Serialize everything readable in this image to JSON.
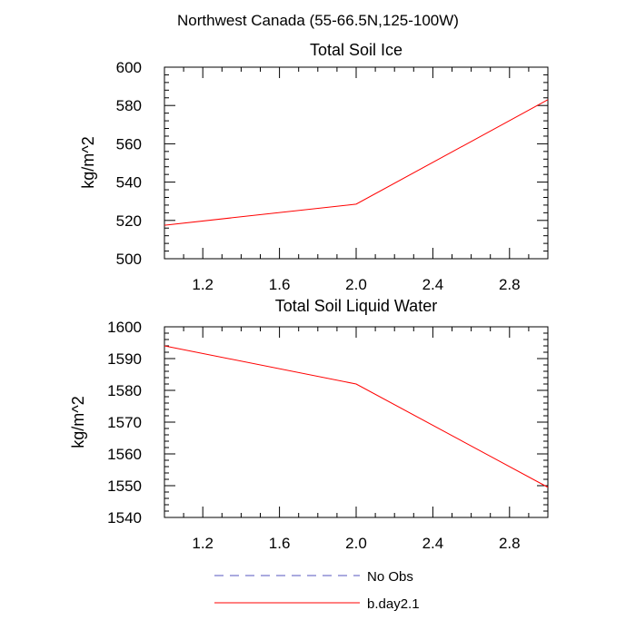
{
  "figure_title": "Northwest Canada (55-66.5N,125-100W)",
  "chart_data": [
    {
      "type": "line",
      "title": "Total Soil Ice",
      "xlabel": "",
      "ylabel": "kg/m^2",
      "xlim": [
        1.0,
        3.0
      ],
      "ylim": [
        500,
        600
      ],
      "xticks": [
        1.2,
        1.6,
        2.0,
        2.4,
        2.8
      ],
      "xtick_labels": [
        "1.2",
        "1.6",
        "2.0",
        "2.4",
        "2.8"
      ],
      "yticks": [
        500,
        520,
        540,
        560,
        580,
        600
      ],
      "ytick_labels": [
        "500",
        "520",
        "540",
        "560",
        "580",
        "600"
      ],
      "series": [
        {
          "name": "b.day2.1",
          "color": "#ff0000",
          "x": [
            1.0,
            2.0,
            3.0
          ],
          "values": [
            517.5,
            528.5,
            583.0
          ]
        }
      ]
    },
    {
      "type": "line",
      "title": "Total Soil Liquid Water",
      "xlabel": "",
      "ylabel": "kg/m^2",
      "xlim": [
        1.0,
        3.0
      ],
      "ylim": [
        1540,
        1600
      ],
      "xticks": [
        1.2,
        1.6,
        2.0,
        2.4,
        2.8
      ],
      "xtick_labels": [
        "1.2",
        "1.6",
        "2.0",
        "2.4",
        "2.8"
      ],
      "yticks": [
        1540,
        1550,
        1560,
        1570,
        1580,
        1590,
        1600
      ],
      "ytick_labels": [
        "1540",
        "1550",
        "1560",
        "1570",
        "1580",
        "1590",
        "1600"
      ],
      "series": [
        {
          "name": "b.day2.1",
          "color": "#ff0000",
          "x": [
            1.0,
            2.0,
            3.0
          ],
          "values": [
            1594.0,
            1582.0,
            1549.5
          ]
        }
      ]
    }
  ],
  "legend": {
    "placement": "bottom-center",
    "entries": [
      {
        "label": "No Obs",
        "color": "#7777cc",
        "style": "dashed"
      },
      {
        "label": "b.day2.1",
        "color": "#ff0000",
        "style": "solid"
      }
    ]
  }
}
